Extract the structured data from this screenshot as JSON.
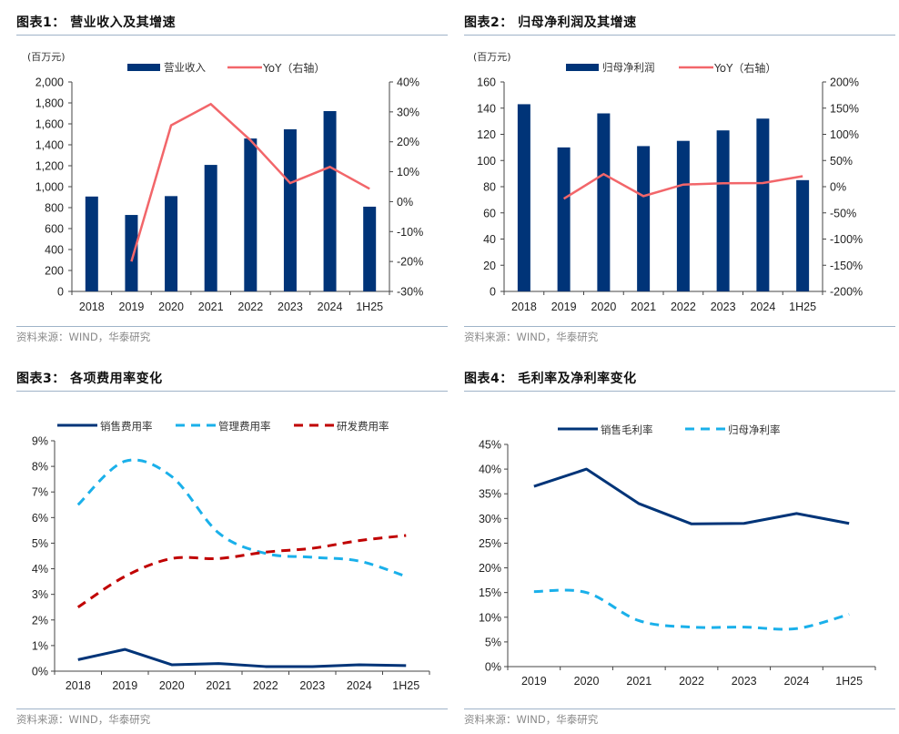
{
  "source_text": "资料来源：WIND，华泰研究",
  "colors": {
    "navy": "#003478",
    "coral": "#f2666a",
    "sky": "#1ab0ea",
    "crimson": "#c00000",
    "axis": "#444444",
    "rule": "#9fb3c8"
  },
  "chart_data": [
    {
      "id": "chart1",
      "title": "图表1：  营业收入及其增速",
      "type": "bar",
      "unit_label": "(百万元)",
      "categories": [
        "2018",
        "2019",
        "2020",
        "2021",
        "2022",
        "2023",
        "2024",
        "1H25"
      ],
      "series": [
        {
          "name": "营业收入",
          "kind": "bar",
          "axis": "left",
          "color": "#003478",
          "values": [
            906,
            730,
            910,
            1208,
            1460,
            1548,
            1722,
            809
          ]
        },
        {
          "name": "YoY（右轴）",
          "kind": "line",
          "axis": "right",
          "color": "#f2666a",
          "values": [
            null,
            -20.0,
            25.5,
            32.6,
            20.5,
            6.2,
            11.6,
            4.3
          ]
        }
      ],
      "left_axis": {
        "min": 0,
        "max": 2000,
        "step": 200,
        "tick_labels": [
          "0",
          "200",
          "400",
          "600",
          "800",
          "1,000",
          "1,200",
          "1,400",
          "1,600",
          "1,800",
          "2,000"
        ]
      },
      "right_axis": {
        "min": -30,
        "max": 40,
        "step": 10,
        "tick_labels": [
          "-30%",
          "-20%",
          "-10%",
          "0%",
          "10%",
          "20%",
          "30%",
          "40%"
        ]
      },
      "legend_position": "top-center",
      "grid": false,
      "source": "资料来源：WIND，华泰研究"
    },
    {
      "id": "chart2",
      "title": "图表2：  归母净利润及其增速",
      "type": "bar",
      "unit_label": "(百万元)",
      "categories": [
        "2018",
        "2019",
        "2020",
        "2021",
        "2022",
        "2023",
        "2024",
        "1H25"
      ],
      "series": [
        {
          "name": "归母净利润",
          "kind": "bar",
          "axis": "left",
          "color": "#003478",
          "values": [
            143,
            110,
            136,
            111,
            115,
            123,
            132,
            85
          ]
        },
        {
          "name": "YoY（右轴）",
          "kind": "line",
          "axis": "right",
          "color": "#f2666a",
          "values": [
            null,
            -23,
            24,
            -18,
            4,
            6.5,
            7,
            20
          ]
        }
      ],
      "left_axis": {
        "min": 0,
        "max": 160,
        "step": 20,
        "tick_labels": [
          "0",
          "20",
          "40",
          "60",
          "80",
          "100",
          "120",
          "140",
          "160"
        ]
      },
      "right_axis": {
        "min": -200,
        "max": 200,
        "step": 50,
        "tick_labels": [
          "-200%",
          "-150%",
          "-100%",
          "-50%",
          "0%",
          "50%",
          "100%",
          "150%",
          "200%"
        ]
      },
      "legend_position": "top-center",
      "grid": false,
      "source": "资料来源：WIND，华泰研究"
    },
    {
      "id": "chart3",
      "title": "图表3：  各项费用率变化",
      "type": "line",
      "categories": [
        "2018",
        "2019",
        "2020",
        "2021",
        "2022",
        "2023",
        "2024",
        "1H25"
      ],
      "series": [
        {
          "name": "销售费用率",
          "style": "solid",
          "color": "#003478",
          "values": [
            0.45,
            0.85,
            0.25,
            0.3,
            0.18,
            0.18,
            0.25,
            0.22
          ]
        },
        {
          "name": "管理费用率",
          "style": "dashed",
          "color": "#1ab0ea",
          "values": [
            6.5,
            8.2,
            7.6,
            5.4,
            4.6,
            4.45,
            4.3,
            3.7
          ]
        },
        {
          "name": "研发费用率",
          "style": "dashed",
          "color": "#c00000",
          "values": [
            2.5,
            3.7,
            4.4,
            4.4,
            4.65,
            4.8,
            5.1,
            5.3
          ]
        }
      ],
      "y_axis": {
        "min": 0,
        "max": 9,
        "step": 1,
        "tick_labels": [
          "0%",
          "1%",
          "2%",
          "3%",
          "4%",
          "5%",
          "6%",
          "7%",
          "8%",
          "9%"
        ]
      },
      "legend_position": "top-center",
      "grid": false,
      "source": "资料来源：WIND，华泰研究"
    },
    {
      "id": "chart4",
      "title": "图表4：  毛利率及净利率变化",
      "type": "line",
      "categories": [
        "2019",
        "2020",
        "2021",
        "2022",
        "2023",
        "2024",
        "1H25"
      ],
      "series": [
        {
          "name": "销售毛利率",
          "style": "solid",
          "color": "#003478",
          "values": [
            36.5,
            40.0,
            33.0,
            28.9,
            29.0,
            31.0,
            29.0
          ]
        },
        {
          "name": "归母净利率",
          "style": "dashed",
          "color": "#1ab0ea",
          "values": [
            15.2,
            15.0,
            9.3,
            8.0,
            8.0,
            7.7,
            10.6
          ]
        }
      ],
      "y_axis": {
        "min": 0,
        "max": 45,
        "step": 5,
        "tick_labels": [
          "0%",
          "5%",
          "10%",
          "15%",
          "20%",
          "25%",
          "30%",
          "35%",
          "40%",
          "45%"
        ]
      },
      "legend_position": "top-center",
      "grid": false,
      "source": "资料来源：WIND，华泰研究"
    }
  ]
}
